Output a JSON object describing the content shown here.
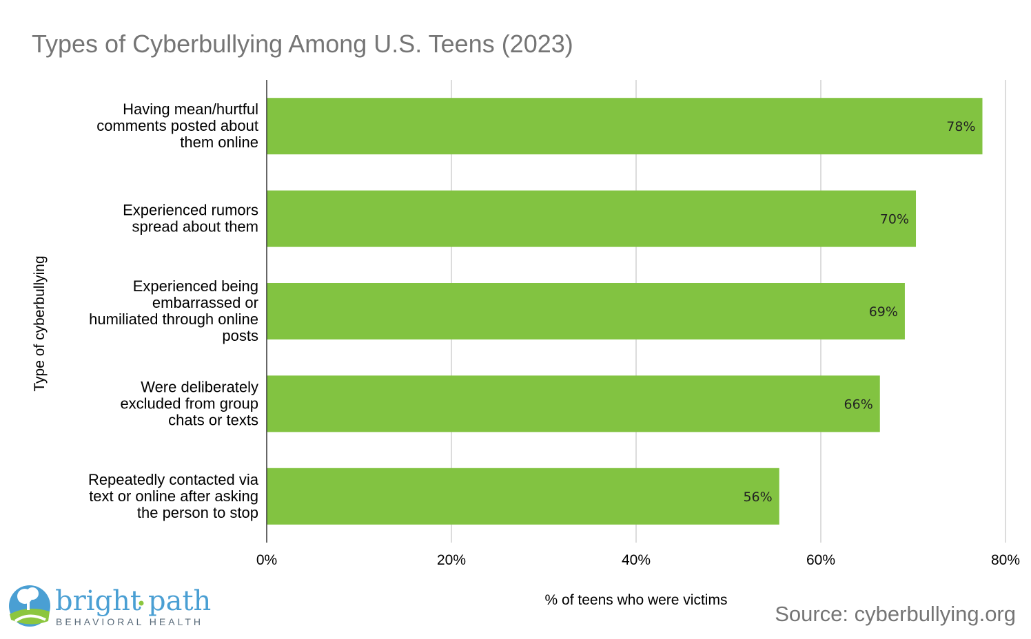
{
  "chart_data": {
    "type": "bar",
    "orientation": "horizontal",
    "title": "Types of Cyberbullying Among U.S. Teens (2023)",
    "xlabel": "% of teens who were victims",
    "ylabel": "Type of cyberbullying",
    "xlim": [
      0,
      80
    ],
    "xticks": [
      "0%",
      "20%",
      "40%",
      "60%",
      "80%"
    ],
    "categories": [
      [
        "Having mean/hurtful",
        "comments posted about",
        "them online"
      ],
      [
        "Experienced rumors",
        "spread about them"
      ],
      [
        "Experienced being",
        "embarrassed or",
        "humiliated through online",
        "posts"
      ],
      [
        "Were deliberately",
        "excluded from group",
        "chats or texts"
      ],
      [
        "Repeatedly contacted via",
        "text or online after asking",
        "the person to stop"
      ]
    ],
    "values": [
      77.5,
      70.3,
      69.1,
      66.4,
      55.5
    ],
    "data_labels": [
      "78%",
      "70%",
      "69%",
      "66%",
      "56%"
    ],
    "grid": true,
    "bar_color": "#82c341"
  },
  "source": "Source: cyberbullying.org",
  "logo": {
    "word1": "bright",
    "word2": "path",
    "subtitle": "BEHAVIORAL HEALTH"
  }
}
